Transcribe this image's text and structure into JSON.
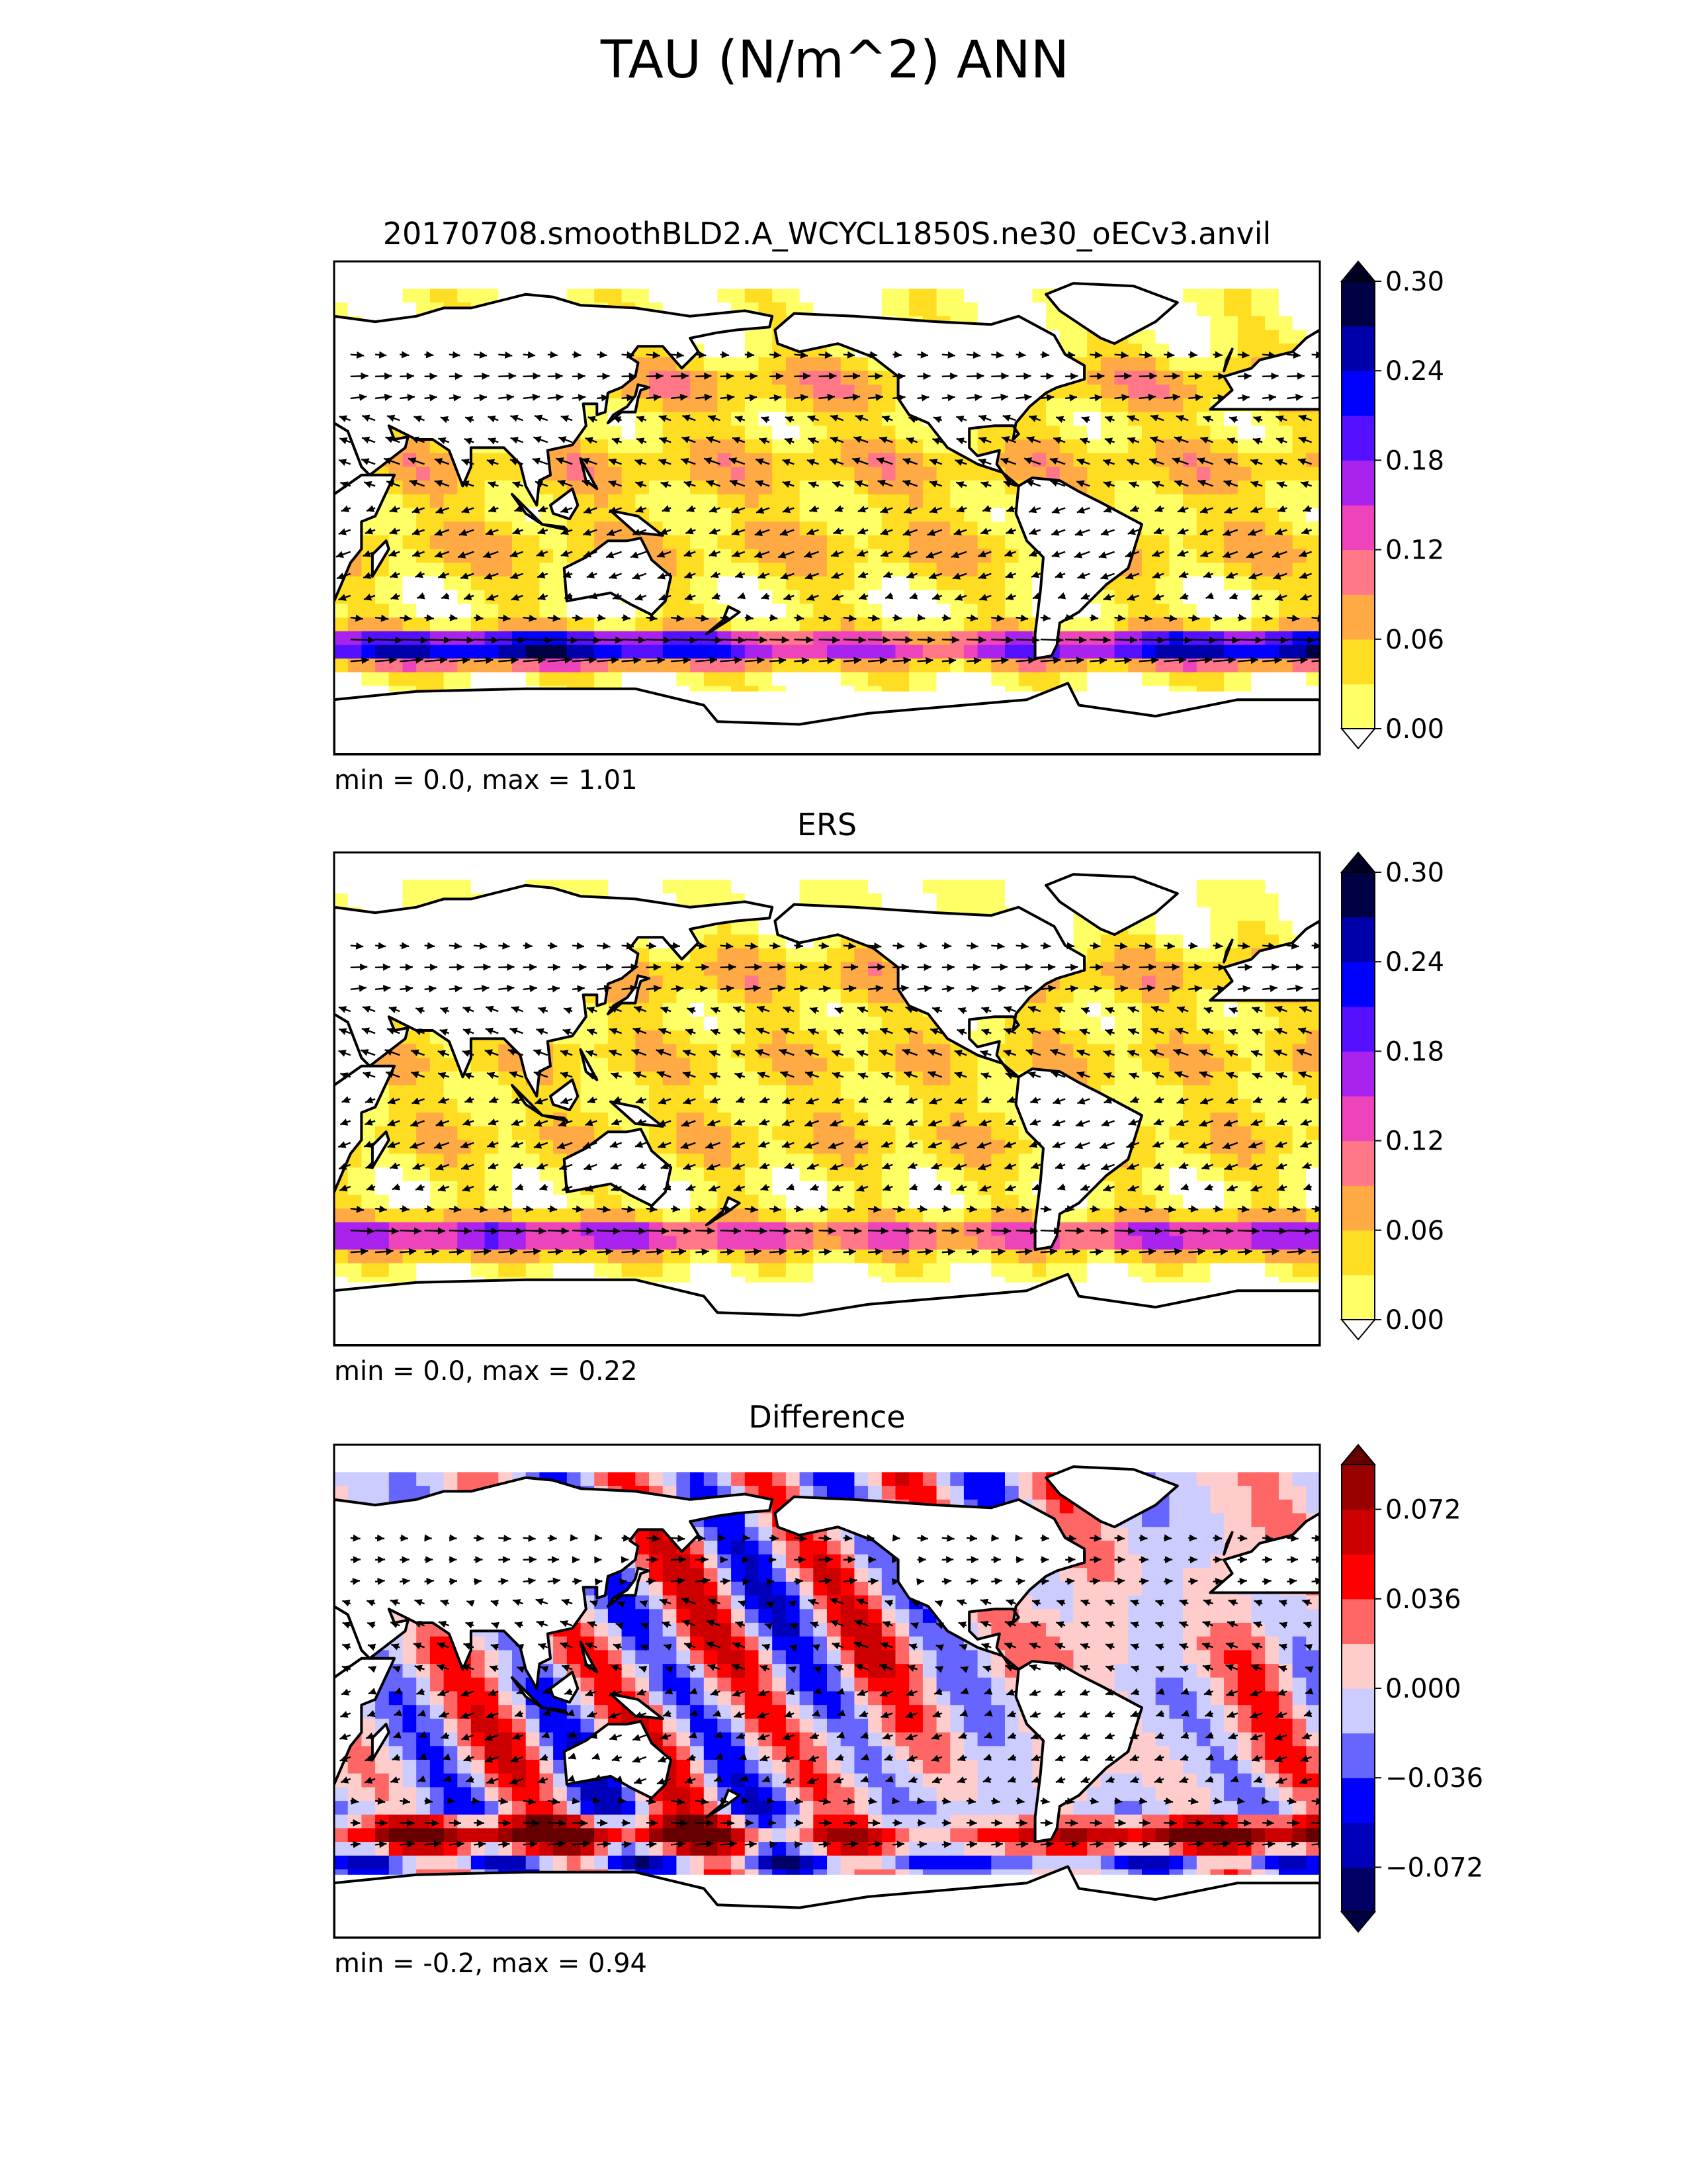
{
  "figure": {
    "title": "TAU (N/m^2) ANN"
  },
  "panels": [
    {
      "id": "test",
      "title": "20170708.smoothBLD2.A_WCYCL1850S.ne30_oECv3.anvil",
      "stats": "min = 0.0, max = 1.01",
      "colorbar": {
        "ticks": [
          "0.30",
          "0.24",
          "0.18",
          "0.12",
          "0.06",
          "0.00"
        ],
        "levels": [
          0,
          0.03,
          0.06,
          0.09,
          0.12,
          0.15,
          0.18,
          0.21,
          0.24,
          0.27,
          0.3
        ],
        "colors": [
          "#ffff66",
          "#ffdd22",
          "#ffaa44",
          "#ff7788",
          "#ee44bb",
          "#aa22ee",
          "#5511ff",
          "#0000ff",
          "#0000aa",
          "#000044"
        ],
        "extend_low": "#ffffff",
        "extend_high": "#000022"
      }
    },
    {
      "id": "reference",
      "title": "ERS",
      "stats": "min = 0.0, max = 0.22",
      "colorbar": {
        "ticks": [
          "0.30",
          "0.24",
          "0.18",
          "0.12",
          "0.06",
          "0.00"
        ],
        "levels": [
          0,
          0.03,
          0.06,
          0.09,
          0.12,
          0.15,
          0.18,
          0.21,
          0.24,
          0.27,
          0.3
        ],
        "colors": [
          "#ffff66",
          "#ffdd22",
          "#ffaa44",
          "#ff7788",
          "#ee44bb",
          "#aa22ee",
          "#5511ff",
          "#0000ff",
          "#0000aa",
          "#000044"
        ],
        "extend_low": "#ffffff",
        "extend_high": "#000022"
      }
    },
    {
      "id": "difference",
      "title": "Difference",
      "stats": "min = -0.2, max = 0.94",
      "colorbar": {
        "ticks": [
          "0.072",
          "0.036",
          "0.000",
          "−0.036",
          "−0.072"
        ],
        "levels": [
          -0.09,
          -0.072,
          -0.054,
          -0.036,
          -0.018,
          0,
          0.018,
          0.036,
          0.054,
          0.072,
          0.09
        ],
        "colors": [
          "#000066",
          "#0000bb",
          "#0000ff",
          "#6666ff",
          "#ccccff",
          "#ffcccc",
          "#ff6666",
          "#ff0000",
          "#cc0000",
          "#990000"
        ],
        "extend_low": "#000044",
        "extend_high": "#660000"
      }
    }
  ],
  "map_colors": {
    "land": "#ffffff",
    "coastline": "#000000",
    "arrow": "#000000"
  }
}
